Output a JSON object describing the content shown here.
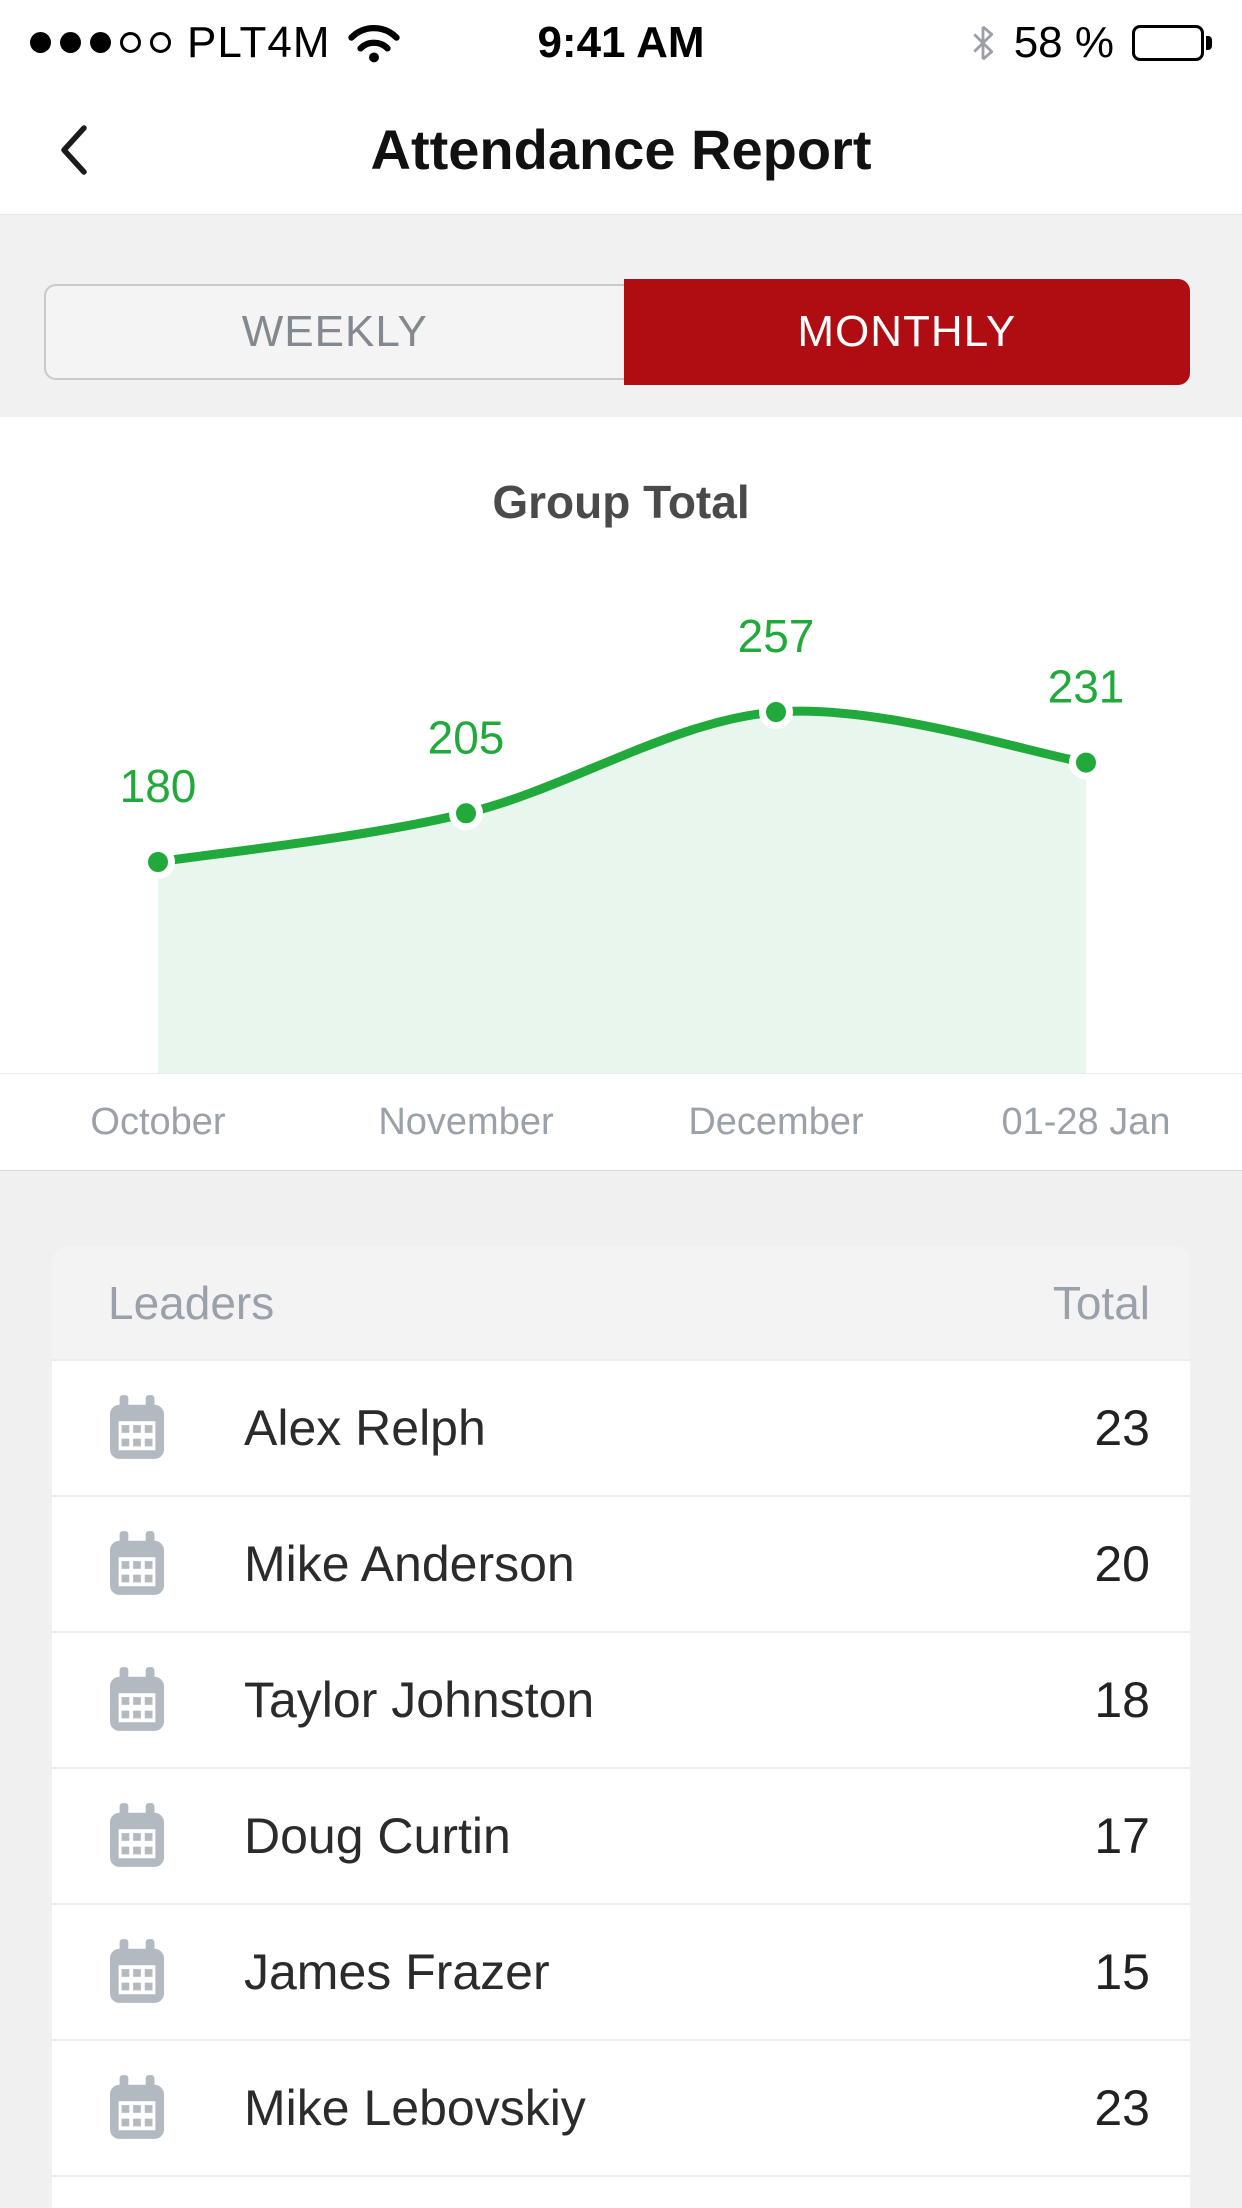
{
  "status_bar": {
    "carrier": "PLT4M",
    "time": "9:41 AM",
    "battery_percent": "58 %"
  },
  "nav": {
    "title": "Attendance Report"
  },
  "segmented_control": {
    "weekly_label": "WEEKLY",
    "monthly_label": "MONTHLY",
    "selected": "MONTHLY",
    "selected_color": "#b00d12"
  },
  "chart_data": {
    "type": "area",
    "title": "Group Total",
    "categories": [
      "October",
      "November",
      "December",
      "01-28 Jan"
    ],
    "values": [
      180,
      205,
      257,
      231
    ],
    "series": [
      {
        "name": "Group Total",
        "values": [
          180,
          205,
          257,
          231
        ]
      }
    ],
    "data_labels": true,
    "legend": false,
    "grid": false,
    "line_color": "#21aa3b",
    "fill_color": "#e9f6ed",
    "label_color": "#21aa3b"
  },
  "table": {
    "header": {
      "leaders": "Leaders",
      "total": "Total"
    },
    "rows": [
      {
        "name": "Alex Relph",
        "total": 23
      },
      {
        "name": "Mike Anderson",
        "total": 20
      },
      {
        "name": "Taylor Johnston",
        "total": 18
      },
      {
        "name": "Doug Curtin",
        "total": 17
      },
      {
        "name": "James Frazer",
        "total": 15
      },
      {
        "name": "Mike Lebovskiy",
        "total": 23
      }
    ]
  }
}
